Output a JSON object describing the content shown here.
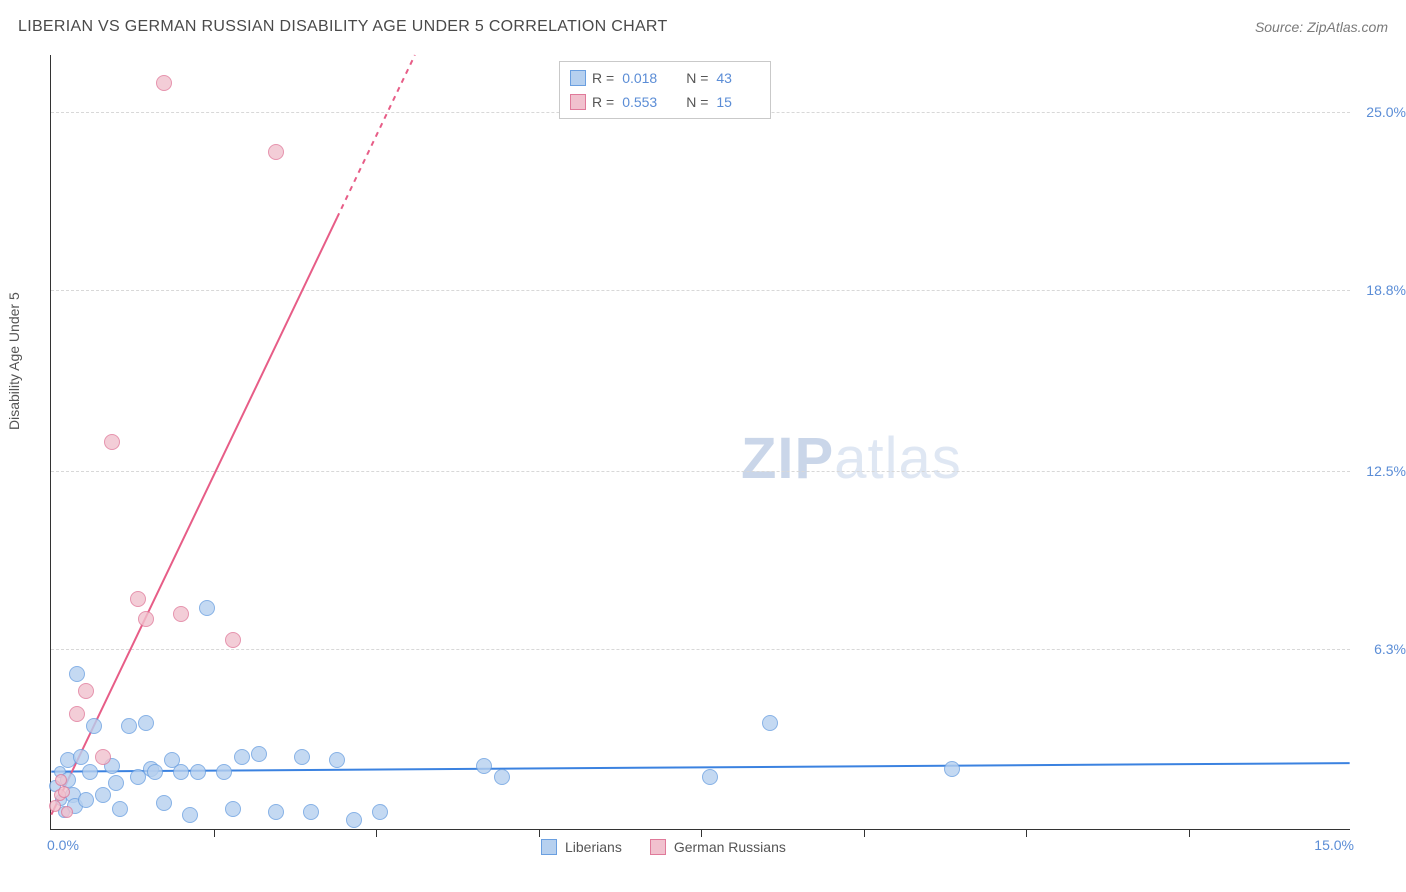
{
  "title": "LIBERIAN VS GERMAN RUSSIAN DISABILITY AGE UNDER 5 CORRELATION CHART",
  "source": "Source: ZipAtlas.com",
  "y_axis_label": "Disability Age Under 5",
  "chart": {
    "type": "scatter",
    "xlim": [
      0,
      15
    ],
    "ylim": [
      0,
      27
    ],
    "x_axis_start_label": "0.0%",
    "x_axis_end_label": "15.0%",
    "y_ticks": [
      {
        "value": 6.3,
        "label": "6.3%"
      },
      {
        "value": 12.5,
        "label": "12.5%"
      },
      {
        "value": 18.8,
        "label": "18.8%"
      },
      {
        "value": 25.0,
        "label": "25.0%"
      }
    ],
    "x_tick_positions": [
      1.875,
      3.75,
      5.625,
      7.5,
      9.375,
      11.25,
      13.125
    ],
    "background_color": "#ffffff",
    "grid_color": "#d8d8d8",
    "axis_color": "#333333",
    "tick_label_color": "#5b8dd6",
    "point_radius": 8,
    "small_point_radius": 6,
    "series": [
      {
        "name": "Liberians",
        "fill_color": "#b6d0ef",
        "stroke_color": "#6a9fe0",
        "fill_opacity": 0.55,
        "trend": {
          "x1": 0,
          "y1": 2.0,
          "x2": 15,
          "y2": 2.3,
          "color": "#3b82e0",
          "width": 2,
          "dashed": false
        },
        "r_value": "0.018",
        "n_value": "43",
        "points": [
          [
            0.05,
            1.5
          ],
          [
            0.1,
            2.0
          ],
          [
            0.12,
            1.0
          ],
          [
            0.15,
            0.6
          ],
          [
            0.2,
            1.7
          ],
          [
            0.2,
            2.4
          ],
          [
            0.25,
            1.2
          ],
          [
            0.28,
            0.8
          ],
          [
            0.3,
            5.4
          ],
          [
            0.35,
            2.5
          ],
          [
            0.4,
            1.0
          ],
          [
            0.45,
            2.0
          ],
          [
            0.5,
            3.6
          ],
          [
            0.6,
            1.2
          ],
          [
            0.7,
            2.2
          ],
          [
            0.75,
            1.6
          ],
          [
            0.8,
            0.7
          ],
          [
            0.9,
            3.6
          ],
          [
            1.0,
            1.8
          ],
          [
            1.1,
            3.7
          ],
          [
            1.15,
            2.1
          ],
          [
            1.2,
            2.0
          ],
          [
            1.3,
            0.9
          ],
          [
            1.4,
            2.4
          ],
          [
            1.5,
            2.0
          ],
          [
            1.6,
            0.5
          ],
          [
            1.7,
            2.0
          ],
          [
            1.8,
            7.7
          ],
          [
            2.0,
            2.0
          ],
          [
            2.1,
            0.7
          ],
          [
            2.2,
            2.5
          ],
          [
            2.4,
            2.6
          ],
          [
            2.6,
            0.6
          ],
          [
            2.9,
            2.5
          ],
          [
            3.0,
            0.6
          ],
          [
            3.3,
            2.4
          ],
          [
            3.5,
            0.3
          ],
          [
            3.8,
            0.6
          ],
          [
            5.0,
            2.2
          ],
          [
            5.2,
            1.8
          ],
          [
            7.6,
            1.8
          ],
          [
            8.3,
            3.7
          ],
          [
            10.4,
            2.1
          ]
        ]
      },
      {
        "name": "German Russians",
        "fill_color": "#f1c1ce",
        "stroke_color": "#e07a9a",
        "fill_opacity": 0.55,
        "trend": {
          "x1": 0,
          "y1": 0.5,
          "x2": 4.2,
          "y2": 27,
          "color": "#e75d87",
          "width": 2,
          "dashed_after_x": 3.3
        },
        "r_value": "0.553",
        "n_value": "15",
        "points": [
          [
            0.05,
            0.8
          ],
          [
            0.1,
            1.2
          ],
          [
            0.12,
            1.7
          ],
          [
            0.15,
            1.3
          ],
          [
            0.18,
            0.6
          ],
          [
            0.3,
            4.0
          ],
          [
            0.4,
            4.8
          ],
          [
            0.6,
            2.5
          ],
          [
            0.7,
            13.5
          ],
          [
            1.0,
            8.0
          ],
          [
            1.1,
            7.3
          ],
          [
            1.3,
            26.0
          ],
          [
            1.5,
            7.5
          ],
          [
            2.1,
            6.6
          ],
          [
            2.6,
            23.6
          ]
        ]
      }
    ]
  },
  "legend_top": {
    "r_label": "R  =",
    "n_label": "N  ="
  },
  "legend_bottom": {
    "items": [
      "Liberians",
      "German Russians"
    ]
  },
  "watermark": {
    "zip": "ZIP",
    "atlas": "atlas"
  }
}
